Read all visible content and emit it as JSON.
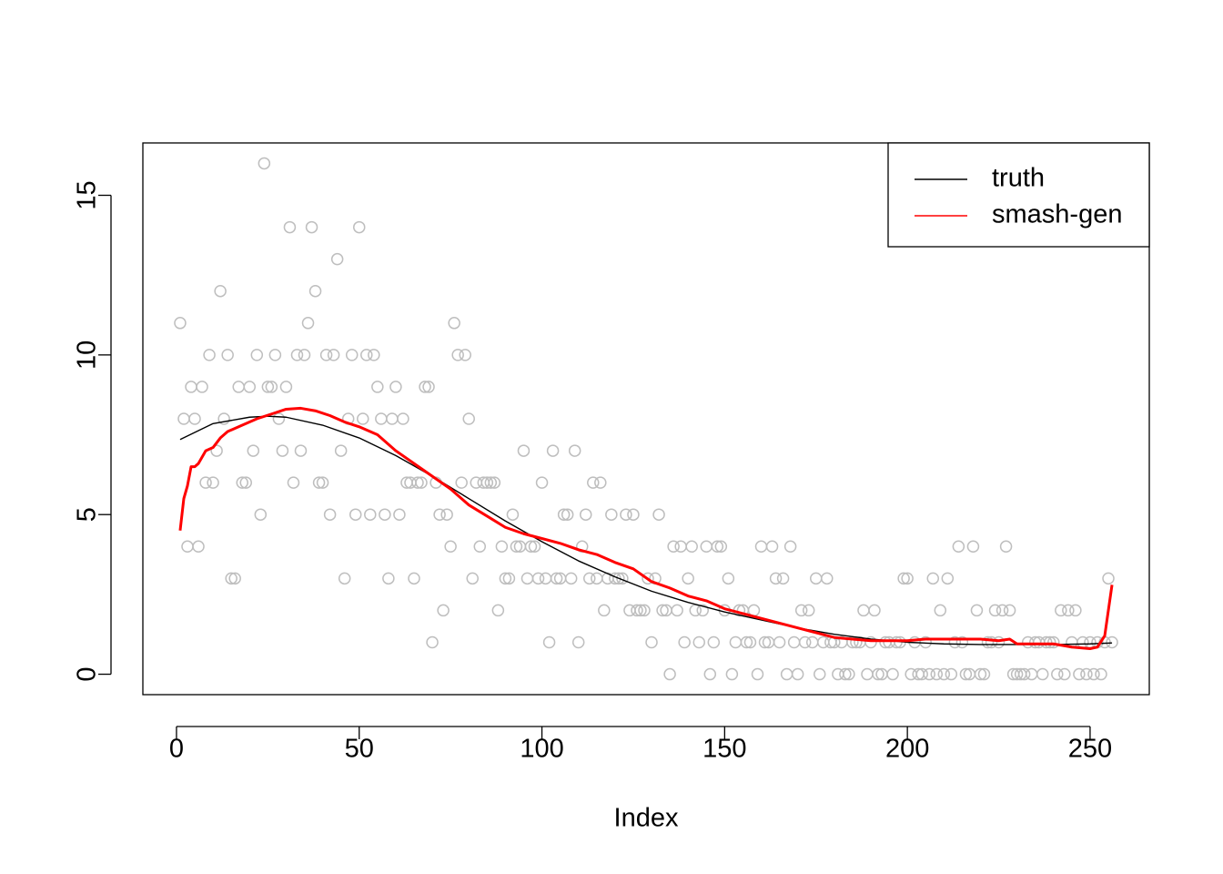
{
  "chart_data": {
    "type": "scatter",
    "xlabel": "Index",
    "xlim": [
      -9.2,
      266.2
    ],
    "ylim": [
      -0.64,
      16.64
    ],
    "xticks": [
      0,
      50,
      100,
      150,
      200,
      250
    ],
    "yticks": [
      0,
      5,
      10,
      15
    ],
    "legend": "top-right",
    "series": [
      {
        "type": "points",
        "color": "#bebebe",
        "x": [
          1,
          2,
          3,
          4,
          5,
          6,
          7,
          8,
          9,
          10,
          11,
          12,
          13,
          14,
          15,
          16,
          17,
          18,
          19,
          20,
          21,
          22,
          23,
          24,
          25,
          26,
          27,
          28,
          29,
          30,
          31,
          32,
          33,
          34,
          35,
          36,
          37,
          38,
          39,
          40,
          41,
          42,
          43,
          44,
          45,
          46,
          47,
          48,
          49,
          50,
          51,
          52,
          53,
          54,
          55,
          56,
          57,
          58,
          59,
          60,
          61,
          62,
          63,
          64,
          65,
          66,
          67,
          68,
          69,
          70,
          71,
          72,
          73,
          74,
          75,
          76,
          77,
          78,
          79,
          80,
          81,
          82,
          83,
          84,
          85,
          86,
          87,
          88,
          89,
          90,
          91,
          92,
          93,
          94,
          95,
          96,
          97,
          98,
          99,
          100,
          101,
          102,
          103,
          104,
          105,
          106,
          107,
          108,
          109,
          110,
          111,
          112,
          113,
          114,
          115,
          116,
          117,
          118,
          119,
          120,
          121,
          122,
          123,
          124,
          125,
          126,
          127,
          128,
          129,
          130,
          131,
          132,
          133,
          134,
          135,
          136,
          137,
          138,
          139,
          140,
          141,
          142,
          143,
          144,
          145,
          146,
          147,
          148,
          149,
          150,
          151,
          152,
          153,
          154,
          155,
          156,
          157,
          158,
          159,
          160,
          161,
          162,
          163,
          164,
          165,
          166,
          167,
          168,
          169,
          170,
          171,
          172,
          173,
          174,
          175,
          176,
          177,
          178,
          179,
          180,
          181,
          182,
          183,
          184,
          185,
          186,
          187,
          188,
          189,
          190,
          191,
          192,
          193,
          194,
          195,
          196,
          197,
          198,
          199,
          200,
          201,
          202,
          203,
          204,
          205,
          206,
          207,
          208,
          209,
          210,
          211,
          212,
          213,
          214,
          215,
          216,
          217,
          218,
          219,
          220,
          221,
          222,
          223,
          224,
          225,
          226,
          227,
          228,
          229,
          230,
          231,
          232,
          233,
          234,
          235,
          236,
          237,
          238,
          239,
          240,
          241,
          242,
          243,
          244,
          245,
          246,
          247,
          248,
          249,
          250,
          251,
          252,
          253,
          254,
          255,
          256
        ],
        "values": [
          11,
          8,
          4,
          9,
          8,
          4,
          9,
          6,
          10,
          6,
          7,
          12,
          8,
          10,
          3,
          3,
          9,
          6,
          6,
          9,
          7,
          10,
          5,
          16,
          9,
          9,
          10,
          8,
          7,
          9,
          14,
          6,
          10,
          7,
          10,
          11,
          14,
          12,
          6,
          6,
          10,
          5,
          10,
          13,
          7,
          3,
          8,
          10,
          5,
          14,
          8,
          10,
          5,
          10,
          9,
          8,
          5,
          3,
          8,
          9,
          5,
          8,
          6,
          6,
          3,
          6,
          6,
          9,
          9,
          1,
          6,
          5,
          2,
          5,
          4,
          11,
          10,
          6,
          10,
          8,
          3,
          6,
          4,
          6,
          6,
          6,
          6,
          2,
          4,
          3,
          3,
          5,
          4,
          4,
          7,
          3,
          4,
          4,
          3,
          6,
          3,
          1,
          7,
          3,
          3,
          5,
          5,
          3,
          7,
          1,
          4,
          5,
          3,
          6,
          3,
          6,
          2,
          3,
          5,
          3,
          3,
          3,
          5,
          2,
          5,
          2,
          2,
          2,
          3,
          1,
          3,
          5,
          2,
          2,
          0,
          4,
          2,
          4,
          1,
          3,
          4,
          2,
          1,
          2,
          4,
          0,
          1,
          4,
          4,
          2,
          3,
          0,
          1,
          2,
          2,
          1,
          1,
          2,
          0,
          4,
          1,
          1,
          4,
          3,
          1,
          3,
          0,
          4,
          1,
          0,
          2,
          1,
          2,
          1,
          3,
          0,
          1,
          3,
          1,
          1,
          0,
          1,
          0,
          0,
          1,
          1,
          1,
          2,
          0,
          1,
          2,
          0,
          0,
          1,
          1,
          0,
          1,
          1,
          3,
          3,
          0,
          1,
          0,
          0,
          1,
          0,
          3,
          0,
          2,
          0,
          3,
          0,
          1,
          4,
          1,
          0,
          0,
          4,
          2,
          0,
          0,
          1,
          1,
          2,
          1,
          2,
          4,
          2,
          0,
          0,
          0,
          0,
          1,
          0,
          1,
          1,
          0,
          1,
          1,
          1,
          0,
          2,
          0,
          2,
          1,
          2,
          0,
          1,
          0,
          1,
          0,
          1,
          0,
          1,
          3,
          1
        ]
      },
      {
        "type": "line",
        "name": "truth",
        "color": "#000000",
        "x": [
          1,
          10,
          20,
          25,
          30,
          40,
          50,
          60,
          70,
          80,
          90,
          100,
          110,
          120,
          130,
          140,
          150,
          160,
          170,
          180,
          190,
          200,
          210,
          220,
          230,
          240,
          250,
          256
        ],
        "values": [
          7.35,
          7.85,
          8.05,
          8.08,
          8.05,
          7.8,
          7.4,
          6.85,
          6.2,
          5.5,
          4.8,
          4.15,
          3.55,
          3.05,
          2.6,
          2.25,
          1.95,
          1.7,
          1.45,
          1.25,
          1.1,
          1.0,
          0.95,
          0.93,
          0.93,
          0.93,
          0.95,
          0.98
        ]
      },
      {
        "type": "line",
        "name": "smash-gen",
        "color": "#ff0000",
        "x": [
          1,
          2,
          3,
          4,
          5,
          6,
          8,
          10,
          12,
          14,
          18,
          22,
          26,
          30,
          34,
          38,
          42,
          46,
          50,
          55,
          60,
          65,
          70,
          75,
          80,
          85,
          90,
          95,
          100,
          105,
          110,
          115,
          120,
          125,
          130,
          135,
          140,
          145,
          150,
          155,
          160,
          165,
          170,
          175,
          180,
          185,
          190,
          200,
          205,
          210,
          220,
          225,
          228,
          230,
          240,
          245,
          250,
          252,
          254,
          256
        ],
        "values": [
          4.5,
          5.5,
          5.9,
          6.5,
          6.5,
          6.6,
          7.0,
          7.1,
          7.4,
          7.6,
          7.8,
          8.0,
          8.15,
          8.3,
          8.33,
          8.25,
          8.1,
          7.9,
          7.75,
          7.5,
          7.0,
          6.6,
          6.2,
          5.8,
          5.3,
          4.95,
          4.6,
          4.4,
          4.25,
          4.1,
          3.9,
          3.75,
          3.5,
          3.3,
          2.9,
          2.7,
          2.45,
          2.3,
          2.05,
          1.9,
          1.75,
          1.6,
          1.45,
          1.3,
          1.15,
          1.1,
          1.05,
          1.05,
          1.1,
          1.1,
          1.1,
          1.05,
          1.1,
          0.95,
          0.95,
          0.85,
          0.8,
          0.85,
          1.2,
          2.8
        ]
      }
    ]
  }
}
